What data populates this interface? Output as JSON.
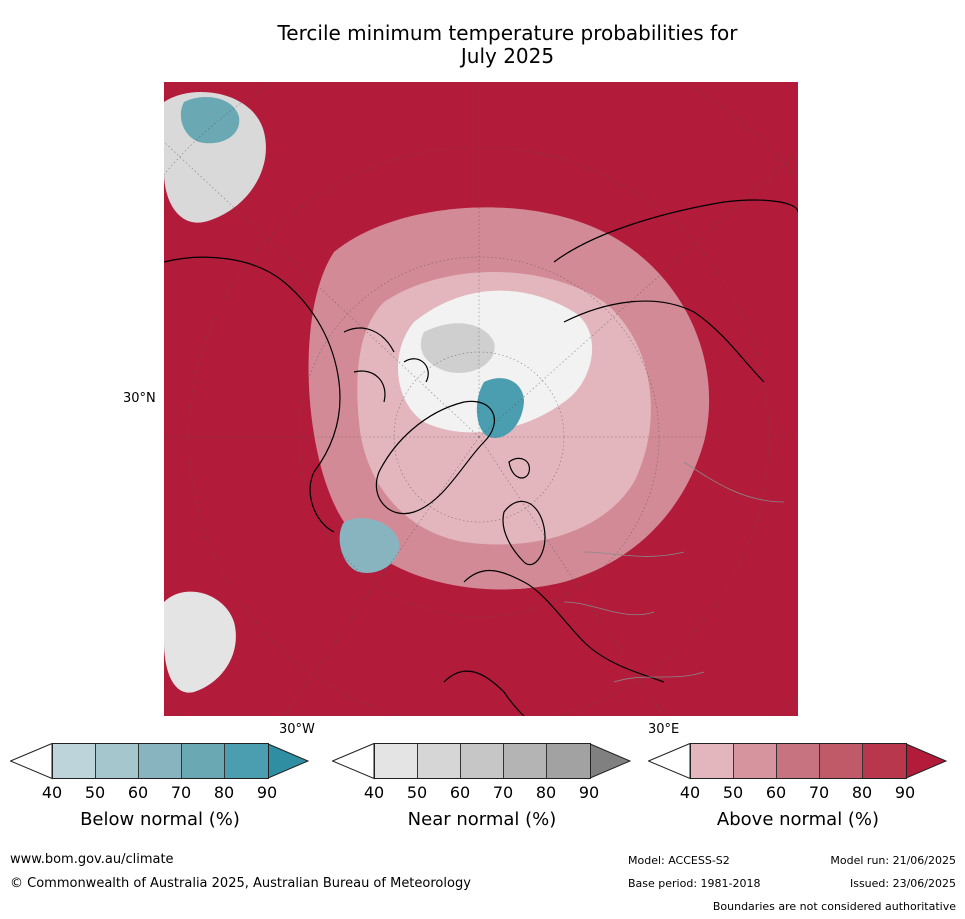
{
  "title_line1": "Tercile minimum temperature probabilities for",
  "title_line2": "July 2025",
  "map": {
    "lat_label": "30°N",
    "lon_label_left": "30°W",
    "lon_label_right": "30°E"
  },
  "colorbars": [
    {
      "caption": "Below normal (%)",
      "ticks": [
        "40",
        "50",
        "60",
        "70",
        "80",
        "90"
      ],
      "colors": [
        "#bcd4da",
        "#a4c6cc",
        "#88b4c0",
        "#6aa8b4",
        "#4a9eb0"
      ],
      "lower_cap": "#ffffff",
      "upper_cap": "#2f8ea1"
    },
    {
      "caption": "Near normal (%)",
      "ticks": [
        "40",
        "50",
        "60",
        "70",
        "80",
        "90"
      ],
      "colors": [
        "#e4e4e4",
        "#d6d6d6",
        "#c6c6c6",
        "#b4b4b4",
        "#a2a2a2"
      ],
      "lower_cap": "#ffffff",
      "upper_cap": "#808080"
    },
    {
      "caption": "Above normal (%)",
      "ticks": [
        "40",
        "50",
        "60",
        "70",
        "80",
        "90"
      ],
      "colors": [
        "#e3b6bd",
        "#d6949f",
        "#c87480",
        "#c05a69",
        "#b8374d"
      ],
      "lower_cap": "#ffffff",
      "upper_cap": "#b31b3a"
    }
  ],
  "footer": {
    "url": "www.bom.gov.au/climate",
    "copyright": "© Commonwealth of Australia 2025, Australian Bureau of Meteorology",
    "model": "Model: ACCESS-S2",
    "model_run": "Model run: 21/06/2025",
    "base_period": "Base period: 1981-2018",
    "issued": "Issued: 23/06/2025",
    "disclaimer": "Boundaries are not considered authoritative"
  }
}
